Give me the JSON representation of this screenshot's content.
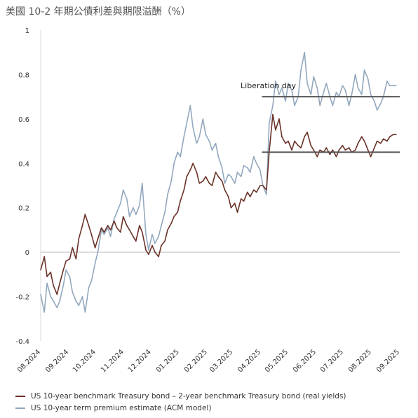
{
  "title": "美國 10-2 年期公債利差與期限溢酬（%）",
  "chart_data": {
    "type": "line",
    "title": "美國 10-2 年期公債利差與期限溢酬（%）",
    "ylim": [
      -0.4,
      1.0
    ],
    "y_ticks": [
      "1",
      "0.8",
      "0.6",
      "0.4",
      "0.2",
      "0",
      "-0.2",
      "-0.4"
    ],
    "y_tick_values": [
      1.0,
      0.8,
      0.6,
      0.4,
      0.2,
      0.0,
      -0.2,
      -0.4
    ],
    "x_range": [
      "2024-08-01",
      "2025-09-01"
    ],
    "x_ticks": [
      "08.2024",
      "09.2024",
      "10.2024",
      "11.2024",
      "12.2024",
      "01.2025",
      "02.2025",
      "03.2025",
      "04.2025",
      "05.2025",
      "06.2025",
      "07.2025",
      "08.2025",
      "09.2025"
    ],
    "x_tick_dates": [
      "2024-08-01",
      "2024-09-01",
      "2024-10-01",
      "2024-11-01",
      "2024-12-01",
      "2025-01-01",
      "2025-02-01",
      "2025-03-01",
      "2025-04-01",
      "2025-05-01",
      "2025-06-01",
      "2025-07-01",
      "2025-08-01",
      "2025-09-01"
    ],
    "zero_line": true,
    "grid": false,
    "legend_position": "bottom-left",
    "annotations": [
      {
        "text": "Liberation day",
        "date": "2025-04-09"
      }
    ],
    "reference_lines": [
      {
        "y": 0.7,
        "x_start": "2025-04-02",
        "x_end": "2025-09-01"
      },
      {
        "y": 0.45,
        "x_start": "2025-04-02",
        "x_end": "2025-09-01"
      }
    ],
    "series": [
      {
        "name": "US 10-year benchmark Treasury bond – 2-year benchmark Treasury bond (real yields)",
        "color": "#6b3228",
        "x": [
          "2024-08-01",
          "2024-08-05",
          "2024-08-08",
          "2024-08-12",
          "2024-08-15",
          "2024-08-19",
          "2024-08-22",
          "2024-08-26",
          "2024-08-29",
          "2024-09-02",
          "2024-09-05",
          "2024-09-09",
          "2024-09-12",
          "2024-09-16",
          "2024-09-19",
          "2024-09-23",
          "2024-09-26",
          "2024-09-30",
          "2024-10-03",
          "2024-10-07",
          "2024-10-10",
          "2024-10-14",
          "2024-10-17",
          "2024-10-21",
          "2024-10-24",
          "2024-10-28",
          "2024-10-31",
          "2024-11-04",
          "2024-11-07",
          "2024-11-11",
          "2024-11-14",
          "2024-11-18",
          "2024-11-21",
          "2024-11-25",
          "2024-11-28",
          "2024-12-02",
          "2024-12-05",
          "2024-12-09",
          "2024-12-12",
          "2024-12-16",
          "2024-12-19",
          "2024-12-23",
          "2024-12-26",
          "2024-12-30",
          "2025-01-02",
          "2025-01-06",
          "2025-01-09",
          "2025-01-13",
          "2025-01-16",
          "2025-01-20",
          "2025-01-23",
          "2025-01-27",
          "2025-01-30",
          "2025-02-03",
          "2025-02-06",
          "2025-02-10",
          "2025-02-13",
          "2025-02-17",
          "2025-02-20",
          "2025-02-24",
          "2025-02-27",
          "2025-03-03",
          "2025-03-06",
          "2025-03-10",
          "2025-03-13",
          "2025-03-17",
          "2025-03-20",
          "2025-03-24",
          "2025-03-27",
          "2025-03-31",
          "2025-04-03",
          "2025-04-07",
          "2025-04-10",
          "2025-04-14",
          "2025-04-17",
          "2025-04-21",
          "2025-04-24",
          "2025-04-28",
          "2025-05-01",
          "2025-05-05",
          "2025-05-08",
          "2025-05-12",
          "2025-05-15",
          "2025-05-19",
          "2025-05-22",
          "2025-05-26",
          "2025-05-29",
          "2025-06-02",
          "2025-06-05",
          "2025-06-09",
          "2025-06-12",
          "2025-06-16",
          "2025-06-19",
          "2025-06-23",
          "2025-06-26",
          "2025-06-30",
          "2025-07-03",
          "2025-07-07",
          "2025-07-10",
          "2025-07-14",
          "2025-07-17",
          "2025-07-21",
          "2025-07-24",
          "2025-07-28",
          "2025-07-31",
          "2025-08-04",
          "2025-08-07",
          "2025-08-11",
          "2025-08-14",
          "2025-08-18",
          "2025-08-21",
          "2025-08-25",
          "2025-08-28"
        ],
        "y": [
          -0.08,
          -0.02,
          -0.11,
          -0.09,
          -0.15,
          -0.19,
          -0.14,
          -0.08,
          -0.04,
          -0.03,
          0.02,
          -0.03,
          0.06,
          0.12,
          0.17,
          0.12,
          0.08,
          0.02,
          0.06,
          0.11,
          0.09,
          0.12,
          0.1,
          0.14,
          0.11,
          0.09,
          0.16,
          0.12,
          0.1,
          0.07,
          0.05,
          0.12,
          0.09,
          0.01,
          -0.01,
          0.03,
          0.0,
          -0.02,
          0.03,
          0.05,
          0.1,
          0.13,
          0.16,
          0.18,
          0.23,
          0.28,
          0.34,
          0.37,
          0.4,
          0.36,
          0.31,
          0.32,
          0.34,
          0.31,
          0.3,
          0.36,
          0.34,
          0.32,
          0.28,
          0.25,
          0.2,
          0.22,
          0.18,
          0.24,
          0.23,
          0.27,
          0.25,
          0.28,
          0.27,
          0.3,
          0.3,
          0.28,
          0.45,
          0.62,
          0.55,
          0.6,
          0.52,
          0.49,
          0.5,
          0.46,
          0.5,
          0.48,
          0.47,
          0.52,
          0.54,
          0.48,
          0.46,
          0.43,
          0.46,
          0.45,
          0.47,
          0.44,
          0.46,
          0.43,
          0.46,
          0.48,
          0.46,
          0.47,
          0.45,
          0.46,
          0.49,
          0.52,
          0.5,
          0.46,
          0.43,
          0.47,
          0.5,
          0.49,
          0.51,
          0.5,
          0.52,
          0.53,
          0.53
        ]
      },
      {
        "name": "US 10-year term premium estimate (ACM model)",
        "color": "#93a8be",
        "x": [
          "2024-08-01",
          "2024-08-05",
          "2024-08-08",
          "2024-08-12",
          "2024-08-15",
          "2024-08-19",
          "2024-08-22",
          "2024-08-26",
          "2024-08-29",
          "2024-09-02",
          "2024-09-05",
          "2024-09-09",
          "2024-09-12",
          "2024-09-16",
          "2024-09-19",
          "2024-09-23",
          "2024-09-26",
          "2024-09-30",
          "2024-10-03",
          "2024-10-07",
          "2024-10-10",
          "2024-10-14",
          "2024-10-17",
          "2024-10-21",
          "2024-10-24",
          "2024-10-28",
          "2024-10-31",
          "2024-11-04",
          "2024-11-07",
          "2024-11-11",
          "2024-11-14",
          "2024-11-18",
          "2024-11-21",
          "2024-11-25",
          "2024-11-28",
          "2024-12-02",
          "2024-12-05",
          "2024-12-09",
          "2024-12-12",
          "2024-12-16",
          "2024-12-19",
          "2024-12-23",
          "2024-12-26",
          "2024-12-30",
          "2025-01-02",
          "2025-01-06",
          "2025-01-09",
          "2025-01-13",
          "2025-01-16",
          "2025-01-20",
          "2025-01-23",
          "2025-01-27",
          "2025-01-30",
          "2025-02-03",
          "2025-02-06",
          "2025-02-10",
          "2025-02-13",
          "2025-02-17",
          "2025-02-20",
          "2025-02-24",
          "2025-02-27",
          "2025-03-03",
          "2025-03-06",
          "2025-03-10",
          "2025-03-13",
          "2025-03-17",
          "2025-03-20",
          "2025-03-24",
          "2025-03-27",
          "2025-03-31",
          "2025-04-03",
          "2025-04-07",
          "2025-04-10",
          "2025-04-14",
          "2025-04-17",
          "2025-04-21",
          "2025-04-24",
          "2025-04-28",
          "2025-05-01",
          "2025-05-05",
          "2025-05-08",
          "2025-05-12",
          "2025-05-15",
          "2025-05-19",
          "2025-05-22",
          "2025-05-26",
          "2025-05-29",
          "2025-06-02",
          "2025-06-05",
          "2025-06-09",
          "2025-06-12",
          "2025-06-16",
          "2025-06-19",
          "2025-06-23",
          "2025-06-26",
          "2025-06-30",
          "2025-07-03",
          "2025-07-07",
          "2025-07-10",
          "2025-07-14",
          "2025-07-17",
          "2025-07-21",
          "2025-07-24",
          "2025-07-28",
          "2025-07-31",
          "2025-08-04",
          "2025-08-07",
          "2025-08-11",
          "2025-08-14",
          "2025-08-18",
          "2025-08-21",
          "2025-08-25",
          "2025-08-28"
        ],
        "y": [
          -0.19,
          -0.27,
          -0.14,
          -0.2,
          -0.22,
          -0.25,
          -0.22,
          -0.15,
          -0.08,
          -0.11,
          -0.18,
          -0.22,
          -0.24,
          -0.2,
          -0.27,
          -0.16,
          -0.13,
          -0.05,
          0.0,
          0.1,
          0.08,
          0.11,
          0.07,
          0.15,
          0.18,
          0.22,
          0.28,
          0.24,
          0.16,
          0.2,
          0.17,
          0.21,
          0.31,
          0.08,
          0.01,
          0.08,
          0.04,
          0.07,
          0.12,
          0.18,
          0.26,
          0.32,
          0.4,
          0.45,
          0.43,
          0.52,
          0.58,
          0.66,
          0.56,
          0.49,
          0.52,
          0.6,
          0.53,
          0.5,
          0.46,
          0.49,
          0.43,
          0.38,
          0.31,
          0.35,
          0.34,
          0.31,
          0.36,
          0.34,
          0.39,
          0.38,
          0.36,
          0.43,
          0.4,
          0.37,
          0.3,
          0.26,
          0.58,
          0.66,
          0.77,
          0.71,
          0.74,
          0.68,
          0.76,
          0.73,
          0.66,
          0.7,
          0.82,
          0.9,
          0.76,
          0.71,
          0.79,
          0.74,
          0.66,
          0.72,
          0.76,
          0.7,
          0.66,
          0.72,
          0.7,
          0.75,
          0.73,
          0.66,
          0.71,
          0.8,
          0.74,
          0.71,
          0.82,
          0.78,
          0.71,
          0.68,
          0.64,
          0.67,
          0.7,
          0.77,
          0.75,
          0.75,
          0.75
        ]
      }
    ]
  }
}
